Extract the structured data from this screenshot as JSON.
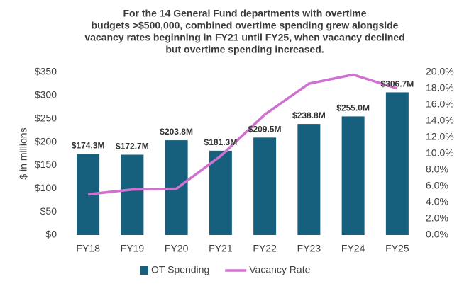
{
  "chart_data": {
    "type": "combo",
    "title": [
      "For the 14 General Fund departments with overtime",
      "budgets >$500,000, combined overtime spending grew alongside",
      "vacancy rates beginning in FY21 until FY25, when vacancy declined",
      "but overtime spending increased."
    ],
    "y_label": "$ in millions",
    "categories": [
      "FY18",
      "FY19",
      "FY20",
      "FY21",
      "FY22",
      "FY23",
      "FY24",
      "FY25"
    ],
    "series": [
      {
        "name": "OT Spending",
        "type": "bar",
        "color": "#17607d",
        "values": [
          174.3,
          172.7,
          203.8,
          181.3,
          209.5,
          238.8,
          255.0,
          306.7
        ],
        "value_labels": [
          "$174.3M",
          "$172.7M",
          "$203.8M",
          "$181.3M",
          "$209.5M",
          "$238.8M",
          "$255.0M",
          "$306.7M"
        ]
      },
      {
        "name": "Vacancy Rate",
        "type": "line",
        "axis": "y2",
        "color": "#d070d0",
        "values": [
          5.0,
          5.6,
          5.7,
          9.7,
          14.8,
          18.6,
          19.7,
          18.0
        ]
      }
    ],
    "ylim": [
      0,
      350
    ],
    "yticks": [
      {
        "value": 0,
        "label": "$0"
      },
      {
        "value": 50,
        "label": "$50"
      },
      {
        "value": 100,
        "label": "$100"
      },
      {
        "value": 150,
        "label": "$150"
      },
      {
        "value": 200,
        "label": "$200"
      },
      {
        "value": 250,
        "label": "$250"
      },
      {
        "value": 300,
        "label": "$300"
      },
      {
        "value": 350,
        "label": "$350"
      }
    ],
    "y2lim": [
      0,
      20
    ],
    "y2ticks": [
      {
        "value": 0,
        "label": "0.0%"
      },
      {
        "value": 2,
        "label": "2.0%"
      },
      {
        "value": 4,
        "label": "4.0%"
      },
      {
        "value": 6,
        "label": "6.0%"
      },
      {
        "value": 8,
        "label": "8.0%"
      },
      {
        "value": 10,
        "label": "10.0%"
      },
      {
        "value": 12,
        "label": "12.0%"
      },
      {
        "value": 14,
        "label": "14.0%"
      },
      {
        "value": 16,
        "label": "16.0%"
      },
      {
        "value": 18,
        "label": "18.0%"
      },
      {
        "value": 20,
        "label": "20.0%"
      }
    ],
    "grid": false,
    "legend": "bottom"
  }
}
